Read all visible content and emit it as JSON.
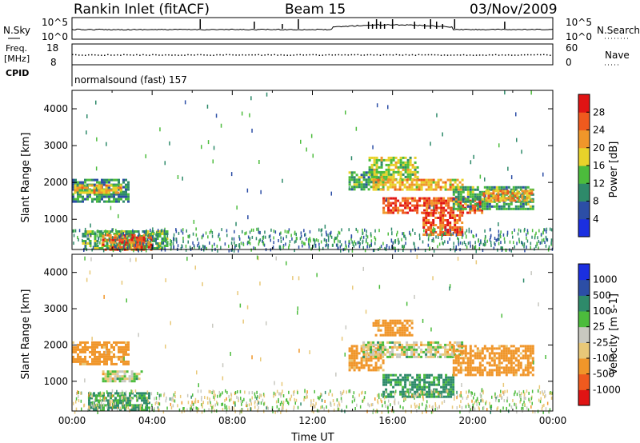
{
  "header": {
    "station": "Rankin Inlet (fitACF)",
    "beam": "Beam 15",
    "date": "03/Nov/2009"
  },
  "noise_panel": {
    "left_label": "N.Sky",
    "right_label": "N.Search",
    "ticks_left": [
      "10^5",
      "10^0"
    ],
    "ticks_right": [
      "10^5",
      "10^0"
    ]
  },
  "freq_panel": {
    "left_label_1": "Freq.",
    "left_label_2": "[MHz]",
    "cpid_label": "CPID",
    "right_label": "Nave",
    "ticks_left": [
      "18",
      "8"
    ],
    "ticks_right": [
      "60",
      "0"
    ],
    "cpid_text": "normalsound (fast) 157"
  },
  "colors": {
    "power_scale": [
      "#1b2fe0",
      "#2c4ea6",
      "#2e8a6a",
      "#4cbc3c",
      "#e8d22a",
      "#f0962a",
      "#ef5a1e",
      "#e01414"
    ],
    "velocity_scale": [
      "#e01414",
      "#ef5a1e",
      "#f0962a",
      "#e8c878",
      "#c8c8c0",
      "#4cbc3c",
      "#2e8a6a",
      "#2c4ea6",
      "#1b2fe0"
    ]
  },
  "chart_data": [
    {
      "type": "heatmap",
      "name": "power",
      "ylabel": "Slant Range [km]",
      "colorbar_label": "Power [dB]",
      "colorbar_ticks": [
        "28",
        "24",
        "20",
        "16",
        "12",
        "8",
        "4"
      ],
      "ylim": [
        180,
        4500
      ],
      "yticks": [
        "4000",
        "3000",
        "2000",
        "1000"
      ],
      "xticks": [
        "00:00",
        "04:00",
        "08:00",
        "12:00",
        "16:00",
        "20:00",
        "00:00"
      ],
      "regions": [
        {
          "t0": 0.0,
          "t1": 2.8,
          "r0": 1500,
          "r1": 2100,
          "value": 10
        },
        {
          "t0": 0.1,
          "t1": 2.4,
          "r0": 1700,
          "r1": 1950,
          "value": 20
        },
        {
          "t0": 0.5,
          "t1": 4.8,
          "r0": 200,
          "r1": 700,
          "value": 14
        },
        {
          "t0": 1.5,
          "t1": 4.0,
          "r0": 200,
          "r1": 600,
          "value": 26
        },
        {
          "t0": 13.8,
          "t1": 15.5,
          "r0": 1800,
          "r1": 2300,
          "value": 12
        },
        {
          "t0": 14.8,
          "t1": 17.2,
          "r0": 2100,
          "r1": 2700,
          "value": 16
        },
        {
          "t0": 15.0,
          "t1": 19.5,
          "r0": 1800,
          "r1": 2100,
          "value": 20
        },
        {
          "t0": 15.5,
          "t1": 20.5,
          "r0": 1200,
          "r1": 1600,
          "value": 26
        },
        {
          "t0": 17.5,
          "t1": 19.5,
          "r0": 600,
          "r1": 1200,
          "value": 26
        },
        {
          "t0": 19.0,
          "t1": 23.0,
          "r0": 1300,
          "r1": 1900,
          "value": 12
        },
        {
          "t0": 20.5,
          "t1": 23.0,
          "r0": 1500,
          "r1": 1800,
          "value": 22
        }
      ]
    },
    {
      "type": "heatmap",
      "name": "velocity",
      "ylabel": "Slant Range [km]",
      "xlabel": "Time UT",
      "colorbar_label": "Velocity [m s-1]",
      "colorbar_ticks": [
        "1000",
        "500",
        "100",
        "25",
        "-25",
        "-100",
        "-500",
        "-1000"
      ],
      "ylim": [
        180,
        4500
      ],
      "yticks": [
        "4000",
        "3000",
        "2000",
        "1000"
      ],
      "xticks": [
        "00:00",
        "04:00",
        "08:00",
        "12:00",
        "16:00",
        "20:00",
        "00:00"
      ],
      "regions": [
        {
          "t0": 0.0,
          "t1": 2.8,
          "r0": 1500,
          "r1": 2100,
          "value": -200
        },
        {
          "t0": 1.5,
          "t1": 3.5,
          "r0": 1000,
          "r1": 1300,
          "value": 0
        },
        {
          "t0": 0.8,
          "t1": 3.8,
          "r0": 200,
          "r1": 700,
          "value": 150
        },
        {
          "t0": 13.8,
          "t1": 15.5,
          "r0": 1300,
          "r1": 2000,
          "value": -200
        },
        {
          "t0": 14.5,
          "t1": 19.5,
          "r0": 1700,
          "r1": 2100,
          "value": 0
        },
        {
          "t0": 15.0,
          "t1": 17.0,
          "r0": 2300,
          "r1": 2700,
          "value": -200
        },
        {
          "t0": 15.5,
          "t1": 19.0,
          "r0": 600,
          "r1": 1200,
          "value": 150
        },
        {
          "t0": 19.0,
          "t1": 23.0,
          "r0": 1200,
          "r1": 2000,
          "value": -200
        }
      ]
    }
  ]
}
